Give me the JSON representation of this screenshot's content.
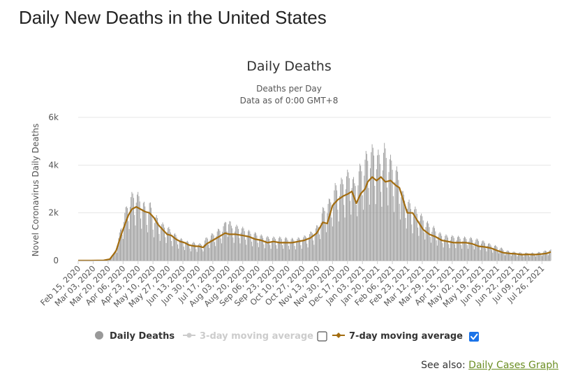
{
  "page": {
    "title": "Daily New Deaths in the United States"
  },
  "see_also": {
    "prefix": "See also:",
    "link_label": "Daily Cases Graph"
  },
  "legend": {
    "items": [
      {
        "label": "Daily Deaths",
        "color": "#999999",
        "active": true,
        "checkbox": false
      },
      {
        "label": "3-day moving average",
        "color": "#cccccc",
        "active": false,
        "checkbox": true,
        "checked": false
      },
      {
        "label": "7-day moving average",
        "color": "#a36d10",
        "active": true,
        "checkbox": true,
        "checked": true
      }
    ]
  },
  "chart_data": {
    "type": "bar",
    "title": "Daily Deaths",
    "subtitle": "Deaths per Day",
    "subtitle2": "Data as of 0:00 GMT+8",
    "ylabel": "Novel Coronavirus Daily Deaths",
    "ylim": [
      0,
      6000
    ],
    "yticks": [
      0,
      2000,
      4000,
      6000
    ],
    "ytick_labels": [
      "0",
      "2k",
      "4k",
      "6k"
    ],
    "x_range": [
      "2020-02-15",
      "2021-08-05"
    ],
    "xtick_labels": [
      "Feb 15, 2020",
      "Mar 03, 2020",
      "Mar 20, 2020",
      "Apr 06, 2020",
      "Apr 23, 2020",
      "May 10, 2020",
      "May 27, 2020",
      "Jun 13, 2020",
      "Jun 30, 2020",
      "Jul 17, 2020",
      "Aug 03, 2020",
      "Aug 20, 2020",
      "Sep 06, 2020",
      "Sep 23, 2020",
      "Oct 10, 2020",
      "Oct 27, 2020",
      "Nov 13, 2020",
      "Nov 30, 2020",
      "Dec 17, 2020",
      "Jan 03, 2021",
      "Jan 20, 2021",
      "Feb 06, 2021",
      "Feb 23, 2021",
      "Mar 12, 2021",
      "Mar 29, 2021",
      "Apr 15, 2021",
      "May 02, 2021",
      "May 19, 2021",
      "Jun 05, 2021",
      "Jun 22, 2021",
      "Jul 09, 2021",
      "Jul 26, 2021"
    ],
    "grid": true,
    "legend_position": "bottom",
    "bar_color": "#999999",
    "line_color": "#a36d10",
    "series": [
      {
        "name": "Daily Deaths",
        "type": "bar",
        "points": [
          [
            "2020-02-15",
            0
          ],
          [
            "2020-03-01",
            0
          ],
          [
            "2020-03-10",
            5
          ],
          [
            "2020-03-18",
            30
          ],
          [
            "2020-03-22",
            80
          ],
          [
            "2020-03-26",
            250
          ],
          [
            "2020-03-30",
            600
          ],
          [
            "2020-04-03",
            1200
          ],
          [
            "2020-04-07",
            1800
          ],
          [
            "2020-04-10",
            2100
          ],
          [
            "2020-04-14",
            2500
          ],
          [
            "2020-04-17",
            2600
          ],
          [
            "2020-04-21",
            2700
          ],
          [
            "2020-04-24",
            2500
          ],
          [
            "2020-04-28",
            2400
          ],
          [
            "2020-05-02",
            2000
          ],
          [
            "2020-05-06",
            2300
          ],
          [
            "2020-05-10",
            1800
          ],
          [
            "2020-05-14",
            1700
          ],
          [
            "2020-05-18",
            1500
          ],
          [
            "2020-05-22",
            1400
          ],
          [
            "2020-05-27",
            1300
          ],
          [
            "2020-06-01",
            1100
          ],
          [
            "2020-06-05",
            1000
          ],
          [
            "2020-06-10",
            850
          ],
          [
            "2020-06-15",
            800
          ],
          [
            "2020-06-20",
            700
          ],
          [
            "2020-06-25",
            700
          ],
          [
            "2020-06-30",
            650
          ],
          [
            "2020-07-05",
            650
          ],
          [
            "2020-07-10",
            900
          ],
          [
            "2020-07-15",
            1000
          ],
          [
            "2020-07-20",
            1100
          ],
          [
            "2020-07-25",
            1250
          ],
          [
            "2020-07-30",
            1400
          ],
          [
            "2020-08-03",
            1800
          ],
          [
            "2020-08-07",
            1350
          ],
          [
            "2020-08-12",
            1350
          ],
          [
            "2020-08-18",
            1300
          ],
          [
            "2020-08-24",
            1200
          ],
          [
            "2020-08-30",
            1100
          ],
          [
            "2020-09-05",
            1050
          ],
          [
            "2020-09-12",
            950
          ],
          [
            "2020-09-20",
            900
          ],
          [
            "2020-09-28",
            900
          ],
          [
            "2020-10-05",
            900
          ],
          [
            "2020-10-12",
            850
          ],
          [
            "2020-10-19",
            850
          ],
          [
            "2020-10-26",
            900
          ],
          [
            "2020-11-02",
            1000
          ],
          [
            "2020-11-09",
            1200
          ],
          [
            "2020-11-14",
            1400
          ],
          [
            "2020-11-19",
            2000
          ],
          [
            "2020-11-24",
            2200
          ],
          [
            "2020-11-29",
            2500
          ],
          [
            "2020-12-03",
            2900
          ],
          [
            "2020-12-08",
            3000
          ],
          [
            "2020-12-12",
            3200
          ],
          [
            "2020-12-17",
            3400
          ],
          [
            "2020-12-21",
            3500
          ],
          [
            "2020-12-25",
            3000
          ],
          [
            "2020-12-29",
            3500
          ],
          [
            "2021-01-03",
            3800
          ],
          [
            "2021-01-07",
            4100
          ],
          [
            "2021-01-12",
            4300
          ],
          [
            "2021-01-16",
            4400
          ],
          [
            "2021-01-20",
            4200
          ],
          [
            "2021-01-24",
            4000
          ],
          [
            "2021-01-28",
            4400
          ],
          [
            "2021-02-01",
            4200
          ],
          [
            "2021-02-06",
            3800
          ],
          [
            "2021-02-10",
            3600
          ],
          [
            "2021-02-14",
            3300
          ],
          [
            "2021-02-18",
            2600
          ],
          [
            "2021-02-23",
            2400
          ],
          [
            "2021-02-28",
            2100
          ],
          [
            "2021-03-05",
            2000
          ],
          [
            "2021-03-10",
            1800
          ],
          [
            "2021-03-15",
            1600
          ],
          [
            "2021-03-20",
            1400
          ],
          [
            "2021-03-25",
            1300
          ],
          [
            "2021-03-30",
            1100
          ],
          [
            "2021-04-05",
            1000
          ],
          [
            "2021-04-12",
            950
          ],
          [
            "2021-04-19",
            950
          ],
          [
            "2021-04-26",
            900
          ],
          [
            "2021-05-03",
            900
          ],
          [
            "2021-05-10",
            850
          ],
          [
            "2021-05-17",
            800
          ],
          [
            "2021-05-24",
            700
          ],
          [
            "2021-05-31",
            600
          ],
          [
            "2021-06-07",
            550
          ],
          [
            "2021-06-14",
            400
          ],
          [
            "2021-06-21",
            350
          ],
          [
            "2021-06-28",
            320
          ],
          [
            "2021-07-05",
            300
          ],
          [
            "2021-07-12",
            300
          ],
          [
            "2021-07-19",
            300
          ],
          [
            "2021-07-26",
            350
          ],
          [
            "2021-08-01",
            400
          ],
          [
            "2021-08-05",
            420
          ]
        ]
      },
      {
        "name": "7-day moving average",
        "type": "line",
        "points": [
          [
            "2020-02-15",
            0
          ],
          [
            "2020-03-01",
            0
          ],
          [
            "2020-03-15",
            10
          ],
          [
            "2020-03-22",
            60
          ],
          [
            "2020-03-29",
            400
          ],
          [
            "2020-04-05",
            1200
          ],
          [
            "2020-04-12",
            1900
          ],
          [
            "2020-04-16",
            2150
          ],
          [
            "2020-04-21",
            2250
          ],
          [
            "2020-04-26",
            2150
          ],
          [
            "2020-05-01",
            2050
          ],
          [
            "2020-05-06",
            2000
          ],
          [
            "2020-05-11",
            1800
          ],
          [
            "2020-05-16",
            1500
          ],
          [
            "2020-05-21",
            1300
          ],
          [
            "2020-05-26",
            1100
          ],
          [
            "2020-05-31",
            1050
          ],
          [
            "2020-06-05",
            900
          ],
          [
            "2020-06-10",
            800
          ],
          [
            "2020-06-15",
            750
          ],
          [
            "2020-06-20",
            650
          ],
          [
            "2020-06-27",
            600
          ],
          [
            "2020-07-01",
            600
          ],
          [
            "2020-07-06",
            550
          ],
          [
            "2020-07-10",
            700
          ],
          [
            "2020-07-17",
            850
          ],
          [
            "2020-07-24",
            1000
          ],
          [
            "2020-07-31",
            1150
          ],
          [
            "2020-08-05",
            1100
          ],
          [
            "2020-08-12",
            1100
          ],
          [
            "2020-08-20",
            1050
          ],
          [
            "2020-08-27",
            1000
          ],
          [
            "2020-09-03",
            900
          ],
          [
            "2020-09-10",
            850
          ],
          [
            "2020-09-17",
            750
          ],
          [
            "2020-09-24",
            800
          ],
          [
            "2020-10-01",
            750
          ],
          [
            "2020-10-08",
            750
          ],
          [
            "2020-10-15",
            750
          ],
          [
            "2020-10-22",
            800
          ],
          [
            "2020-10-29",
            850
          ],
          [
            "2020-11-05",
            950
          ],
          [
            "2020-11-12",
            1150
          ],
          [
            "2020-11-19",
            1600
          ],
          [
            "2020-11-24",
            1550
          ],
          [
            "2020-11-30",
            2300
          ],
          [
            "2020-12-06",
            2550
          ],
          [
            "2020-12-12",
            2700
          ],
          [
            "2020-12-18",
            2800
          ],
          [
            "2020-12-22",
            2900
          ],
          [
            "2020-12-27",
            2400
          ],
          [
            "2021-01-01",
            2800
          ],
          [
            "2021-01-06",
            3000
          ],
          [
            "2021-01-09",
            3300
          ],
          [
            "2021-01-14",
            3500
          ],
          [
            "2021-01-19",
            3350
          ],
          [
            "2021-01-24",
            3500
          ],
          [
            "2021-01-29",
            3300
          ],
          [
            "2021-02-04",
            3350
          ],
          [
            "2021-02-10",
            3150
          ],
          [
            "2021-02-14",
            3050
          ],
          [
            "2021-02-19",
            2450
          ],
          [
            "2021-02-23",
            2000
          ],
          [
            "2021-03-01",
            2000
          ],
          [
            "2021-03-06",
            1700
          ],
          [
            "2021-03-13",
            1300
          ],
          [
            "2021-03-20",
            1100
          ],
          [
            "2021-03-27",
            1000
          ],
          [
            "2021-04-03",
            850
          ],
          [
            "2021-04-10",
            800
          ],
          [
            "2021-04-17",
            750
          ],
          [
            "2021-04-24",
            750
          ],
          [
            "2021-05-01",
            750
          ],
          [
            "2021-05-08",
            700
          ],
          [
            "2021-05-15",
            600
          ],
          [
            "2021-05-22",
            570
          ],
          [
            "2021-05-29",
            520
          ],
          [
            "2021-06-05",
            420
          ],
          [
            "2021-06-12",
            330
          ],
          [
            "2021-06-19",
            300
          ],
          [
            "2021-06-26",
            280
          ],
          [
            "2021-07-03",
            250
          ],
          [
            "2021-07-10",
            260
          ],
          [
            "2021-07-17",
            250
          ],
          [
            "2021-07-24",
            270
          ],
          [
            "2021-07-31",
            300
          ],
          [
            "2021-08-05",
            360
          ]
        ]
      }
    ]
  }
}
